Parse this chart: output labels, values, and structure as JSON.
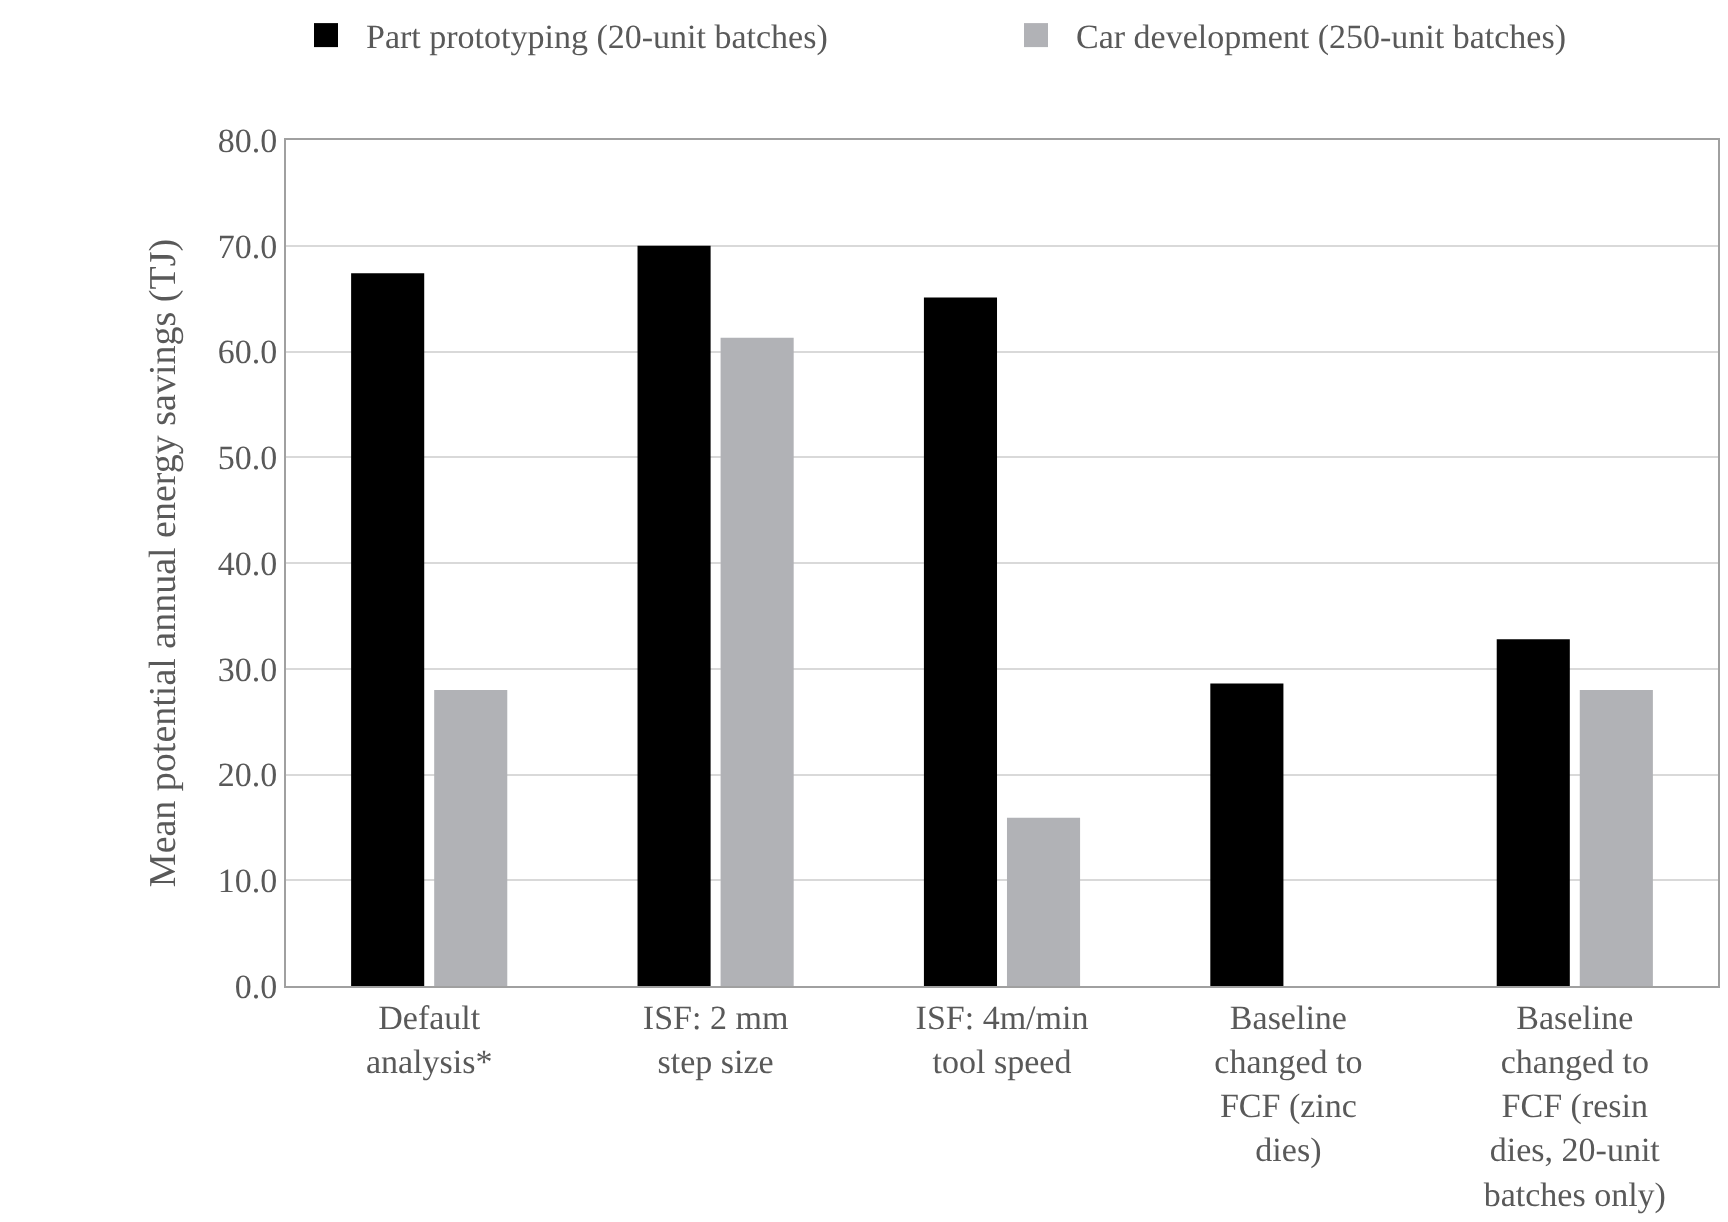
{
  "chart_data": {
    "type": "bar",
    "ylabel": "Mean potential annual energy savings (TJ)",
    "categories": [
      "Default analysis*",
      "ISF: 2 mm step size",
      "ISF: 4m/min tool speed",
      "Baseline changed to FCF (zinc dies)",
      "Baseline changed to FCF (resin dies, 20-unit batches only)"
    ],
    "series": [
      {
        "name": "Part prototyping (20-unit batches)",
        "color": "#000000",
        "values": [
          67.4,
          70.0,
          65.1,
          28.6,
          32.8
        ]
      },
      {
        "name": "Car development (250-unit batches)",
        "color": "#b1b2b6",
        "values": [
          28.0,
          61.3,
          15.9,
          null,
          28.0
        ]
      }
    ],
    "ylim": [
      0,
      80
    ],
    "yticks": [
      {
        "value": 0,
        "label": "0.0"
      },
      {
        "value": 10,
        "label": "10.0"
      },
      {
        "value": 20,
        "label": "20.0"
      },
      {
        "value": 30,
        "label": "30.0"
      },
      {
        "value": 40,
        "label": "40.0"
      },
      {
        "value": 50,
        "label": "50.0"
      },
      {
        "value": 60,
        "label": "60.0"
      },
      {
        "value": 70,
        "label": "70.0"
      },
      {
        "value": 80,
        "label": "80.0"
      }
    ],
    "grid": "y",
    "legend": "top"
  }
}
